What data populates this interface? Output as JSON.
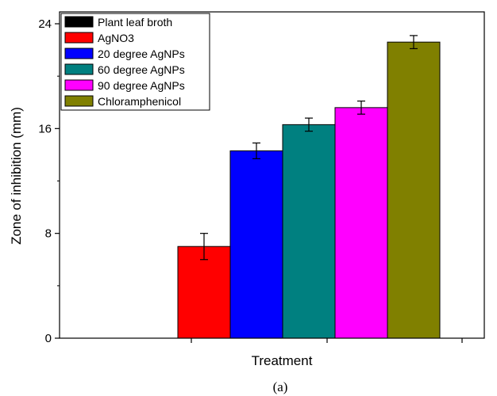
{
  "chart_data": {
    "type": "bar",
    "title": "",
    "xlabel": "Treatment",
    "ylabel": "Zone of inhibition (mm)",
    "ylim": [
      0,
      24
    ],
    "yticks": [
      "0",
      "8",
      "16",
      "24"
    ],
    "grid": false,
    "legend_position": "top-left",
    "series": [
      {
        "name": "Plant leaf broth",
        "value": 0,
        "error": 0,
        "color": "#000000"
      },
      {
        "name": "AgNO3",
        "value": 7,
        "error": 1.0,
        "color": "#ff0000"
      },
      {
        "name": "20 degree AgNPs",
        "value": 14.3,
        "error": 0.6,
        "color": "#0000ff"
      },
      {
        "name": "60 degree AgNPs",
        "value": 16.3,
        "error": 0.5,
        "color": "#008080"
      },
      {
        "name": "90 degree AgNPs",
        "value": 17.6,
        "error": 0.5,
        "color": "#ff00ff"
      },
      {
        "name": "Chloramphenicol",
        "value": 22.6,
        "error": 0.5,
        "color": "#808000"
      }
    ]
  },
  "caption": "(a)"
}
